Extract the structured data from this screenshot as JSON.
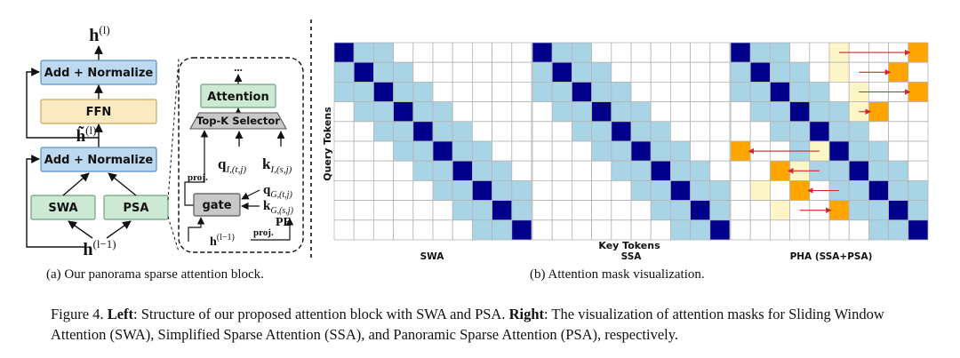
{
  "block": {
    "output_label": "h",
    "output_sup": "(l)",
    "add_norm_top": "Add + Normalize",
    "ffn": "FFN",
    "mid_label": "h̃",
    "mid_sup": "(l)",
    "add_norm_bottom": "Add + Normalize",
    "swa": "SWA",
    "psa": "PSA",
    "input_label": "h",
    "input_sup": "(l−1)"
  },
  "psa_detail": {
    "ellipsis": "...",
    "attention": "Attention",
    "topk": "Top-K Selector",
    "q_local": "q",
    "q_local_sub": "I,(t,j)",
    "k_local": "k",
    "k_local_sub": "I,(s,j)",
    "proj_top": "proj.",
    "q_global": "q",
    "q_global_sub": "G,(t,j)",
    "k_global": "k",
    "k_global_sub": "G,(s,j)",
    "gate": "gate",
    "pe": "PE",
    "h_input": "h",
    "h_input_sup": "(l−1)",
    "proj_bottom": "proj."
  },
  "mask": {
    "y_axis_label": "Query Tokens",
    "x_axis_label": "Key Tokens",
    "grid_size": 10,
    "panels": [
      {
        "name": "SWA",
        "window": 2,
        "sparse_cells": [],
        "candidate_cells": [],
        "arrows": []
      },
      {
        "name": "SSA",
        "window": 2,
        "sparse_cells": [],
        "candidate_cells": [],
        "arrows": []
      },
      {
        "name": "PHA (SSA+PSA)",
        "window": 2,
        "sparse_cells": [
          [
            0,
            9
          ],
          [
            1,
            8
          ],
          [
            2,
            9
          ],
          [
            3,
            7
          ],
          [
            5,
            0
          ],
          [
            6,
            2
          ],
          [
            7,
            3
          ],
          [
            8,
            5
          ]
        ],
        "candidate_cells": [
          [
            0,
            5
          ],
          [
            1,
            5
          ],
          [
            2,
            6
          ],
          [
            3,
            6
          ],
          [
            5,
            4
          ],
          [
            6,
            3
          ],
          [
            7,
            1
          ],
          [
            8,
            2
          ]
        ],
        "arrows": [
          [
            0,
            5,
            0,
            9
          ],
          [
            1,
            6,
            1,
            8
          ],
          [
            2,
            6,
            2,
            9
          ],
          [
            3,
            6,
            3,
            7
          ],
          [
            5,
            4,
            5,
            0
          ],
          [
            6,
            4,
            6,
            2
          ],
          [
            7,
            5,
            7,
            3
          ],
          [
            8,
            3,
            8,
            5
          ]
        ]
      }
    ]
  },
  "colors": {
    "diag": "#00008b",
    "near": "#a8d4e6",
    "sparse": "#ffa500",
    "candidate": "#fff6c8",
    "arrow": "#d62728",
    "add_norm_fill": "#bcd9ef",
    "ffn_fill": "#fbe9c1",
    "swa_psa_fill": "#cde8d3",
    "attention_fill": "#cde8d3",
    "gate_fill": "#c8c8c8",
    "grid_line": "#b5b5b5"
  },
  "captions": {
    "left": "(a) Our panorama sparse attention block.",
    "right": "(b) Attention mask visualization."
  },
  "figure": {
    "label": "Figure 4.",
    "left_bold": "Left",
    "text1": ": Structure of our proposed attention block with SWA and PSA. ",
    "right_bold": "Right",
    "text2": ": The visualization of attention masks for Sliding Window Attention (SWA), Simplified Sparse Attention (SSA), and Panoramic Sparse Attention (PSA), respectively."
  }
}
